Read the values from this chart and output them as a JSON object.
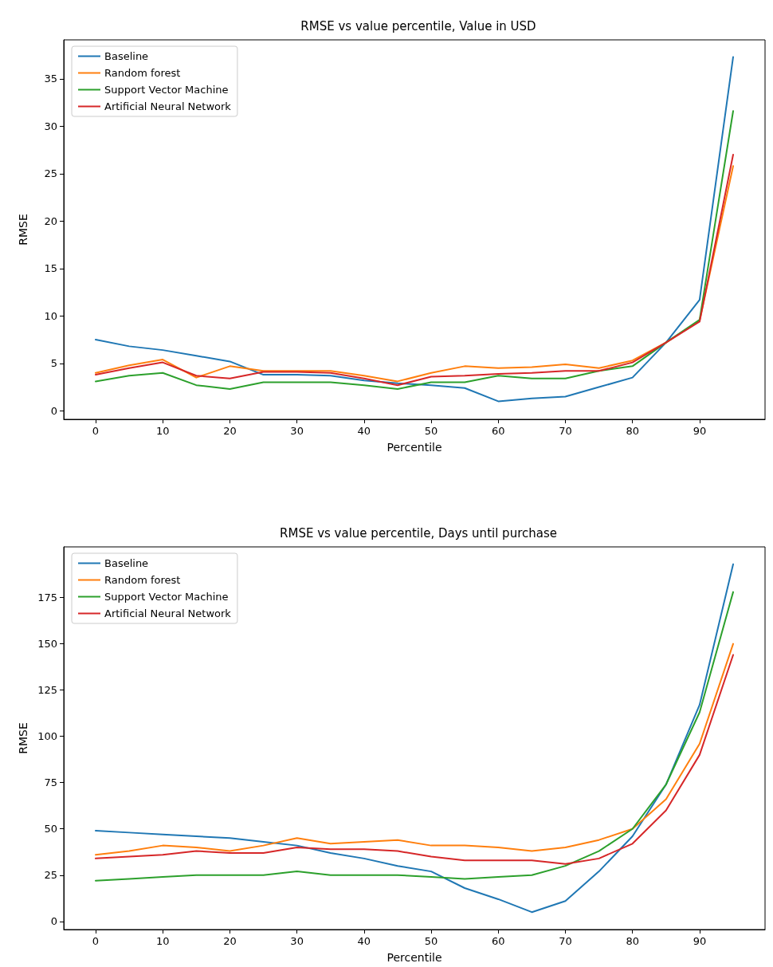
{
  "chart_data": [
    {
      "type": "line",
      "title": "RMSE vs value percentile, Value in USD",
      "xlabel": "Percentile",
      "ylabel": "RMSE",
      "x": [
        0,
        5,
        10,
        15,
        20,
        25,
        30,
        35,
        40,
        45,
        50,
        55,
        60,
        65,
        70,
        75,
        80,
        85,
        90,
        95
      ],
      "xlim": [
        -4.75,
        99.75
      ],
      "xticks": [
        0,
        10,
        20,
        30,
        40,
        50,
        60,
        70,
        80,
        90
      ],
      "ylim": [
        -0.9,
        39.1
      ],
      "yticks": [
        0,
        5,
        10,
        15,
        20,
        25,
        30,
        35
      ],
      "grid": false,
      "legend": "top left",
      "marker": "none",
      "line_style": "solid",
      "series": [
        {
          "name": "Baseline",
          "color": "#1f77b4",
          "values": [
            7.5,
            6.8,
            6.4,
            5.8,
            5.2,
            3.8,
            3.8,
            3.7,
            3.2,
            2.9,
            2.7,
            2.4,
            1.0,
            1.3,
            1.5,
            2.5,
            3.5,
            7.2,
            11.7,
            37.3
          ]
        },
        {
          "name": "Random forest",
          "color": "#ff7f0e",
          "values": [
            4.0,
            4.8,
            5.4,
            3.5,
            4.7,
            4.2,
            4.2,
            4.2,
            3.7,
            3.1,
            4.0,
            4.7,
            4.5,
            4.6,
            4.9,
            4.5,
            5.3,
            7.2,
            9.5,
            25.8
          ]
        },
        {
          "name": "Support Vector Machine",
          "color": "#2ca02c",
          "values": [
            3.1,
            3.7,
            4.0,
            2.7,
            2.3,
            3.0,
            3.0,
            3.0,
            2.7,
            2.3,
            3.0,
            3.0,
            3.7,
            3.4,
            3.4,
            4.2,
            4.7,
            7.2,
            9.6,
            31.6
          ]
        },
        {
          "name": "Artificial Neural Network",
          "color": "#d62728",
          "values": [
            3.8,
            4.5,
            5.1,
            3.7,
            3.4,
            4.1,
            4.1,
            4.0,
            3.4,
            2.7,
            3.6,
            3.7,
            3.9,
            4.0,
            4.2,
            4.2,
            5.1,
            7.2,
            9.4,
            27.0
          ]
        }
      ]
    },
    {
      "type": "line",
      "title": "RMSE vs value percentile, Days until purchase",
      "xlabel": "Percentile",
      "ylabel": "RMSE",
      "x": [
        0,
        5,
        10,
        15,
        20,
        25,
        30,
        35,
        40,
        45,
        50,
        55,
        60,
        65,
        70,
        75,
        80,
        85,
        90,
        95
      ],
      "xlim": [
        -4.75,
        99.75
      ],
      "xticks": [
        0,
        10,
        20,
        30,
        40,
        50,
        60,
        70,
        80,
        90
      ],
      "ylim": [
        -4.4,
        202.4
      ],
      "yticks": [
        0,
        25,
        50,
        75,
        100,
        125,
        150,
        175
      ],
      "grid": false,
      "legend": "top left",
      "marker": "none",
      "line_style": "solid",
      "series": [
        {
          "name": "Baseline",
          "color": "#1f77b4",
          "values": [
            49,
            48,
            47,
            46,
            45,
            43,
            41,
            37,
            34,
            30,
            27,
            18,
            12,
            5,
            11,
            27,
            46,
            74,
            117,
            193
          ]
        },
        {
          "name": "Random forest",
          "color": "#ff7f0e",
          "values": [
            36,
            38,
            41,
            40,
            38,
            41,
            45,
            42,
            43,
            44,
            41,
            41,
            40,
            38,
            40,
            44,
            50,
            66,
            96,
            150
          ]
        },
        {
          "name": "Support Vector Machine",
          "color": "#2ca02c",
          "values": [
            22,
            23,
            24,
            25,
            25,
            25,
            27,
            25,
            25,
            25,
            24,
            23,
            24,
            25,
            30,
            38,
            50,
            74,
            113,
            178
          ]
        },
        {
          "name": "Artificial Neural Network",
          "color": "#d62728",
          "values": [
            34,
            35,
            36,
            38,
            37,
            37,
            40,
            39,
            39,
            38,
            35,
            33,
            33,
            33,
            31,
            34,
            42,
            60,
            90,
            144
          ]
        }
      ]
    }
  ]
}
